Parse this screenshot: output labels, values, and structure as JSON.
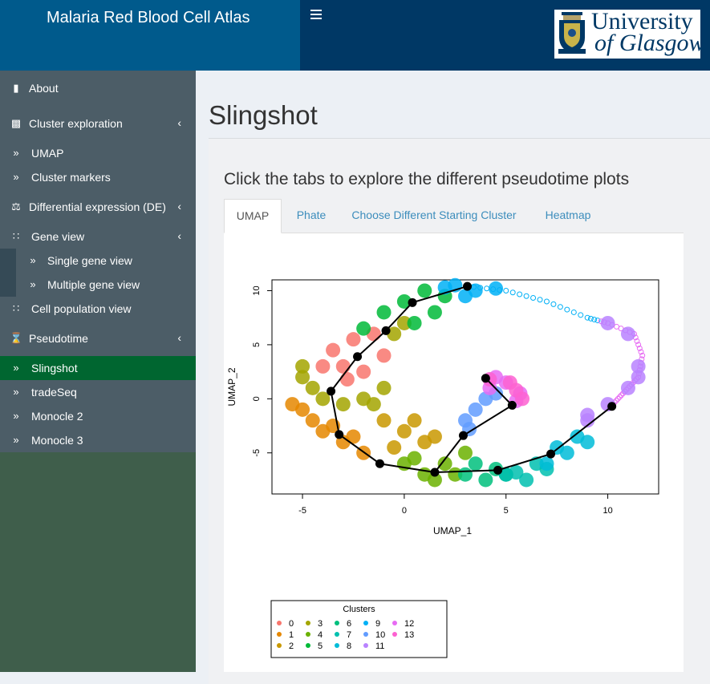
{
  "header": {
    "app_title": "Malaria Red Blood Cell Atlas",
    "logo_line1": "University",
    "logo_line2": "of Glasgow",
    "toggle_icon": "hamburger-icon"
  },
  "sidebar": {
    "items": [
      {
        "label": "About",
        "icon": "book-icon"
      },
      {
        "label": "Cluster exploration",
        "icon": "puzzle-icon",
        "expandable": true
      },
      {
        "label": "UMAP",
        "icon": "double-chevron-icon"
      },
      {
        "label": "Cluster markers",
        "icon": "double-chevron-icon"
      },
      {
        "label": "Differential expression (DE)",
        "icon": "balance-scale-icon",
        "expandable": true
      },
      {
        "label": "Gene view",
        "icon": "grid-icon",
        "expandable": true
      },
      {
        "label": "Single gene view",
        "icon": "double-chevron-icon"
      },
      {
        "label": "Multiple gene view",
        "icon": "double-chevron-icon"
      },
      {
        "label": "Cell population view",
        "icon": "grid-icon"
      },
      {
        "label": "Pseudotime",
        "icon": "hourglass-icon",
        "expandable": true
      },
      {
        "label": "Slingshot",
        "icon": "double-chevron-icon",
        "active": true
      },
      {
        "label": "tradeSeq",
        "icon": "double-chevron-icon"
      },
      {
        "label": "Monocle 2",
        "icon": "double-chevron-icon"
      },
      {
        "label": "Monocle 3",
        "icon": "double-chevron-icon"
      }
    ],
    "active_color": "#006630"
  },
  "main": {
    "page_title": "Slingshot",
    "box_title": "Click the tabs to explore the different pseudotime plots",
    "tabs": [
      {
        "label": "UMAP",
        "active": true
      },
      {
        "label": "Phate"
      },
      {
        "label": "Choose Different Starting Cluster"
      },
      {
        "label": "Heatmap"
      }
    ]
  },
  "chart_data": {
    "type": "scatter",
    "title": "",
    "xlabel": "UMAP_1",
    "ylabel": "UMAP_2",
    "xlim": [
      -6.5,
      12.5
    ],
    "ylim": [
      -8.8,
      11
    ],
    "x_ticks": [
      -5,
      0,
      5,
      10
    ],
    "y_ticks": [
      -5,
      0,
      5,
      10
    ],
    "legend": {
      "title": "Clusters",
      "placement": "bottom-left",
      "entries": [
        "0",
        "1",
        "2",
        "3",
        "4",
        "5",
        "6",
        "7",
        "8",
        "9",
        "10",
        "11",
        "12",
        "13"
      ]
    },
    "cluster_colors": [
      "#F8766D",
      "#E58700",
      "#C99800",
      "#A3A500",
      "#6BB100",
      "#00BA38",
      "#00BF7D",
      "#00C0AF",
      "#00BCD8",
      "#00B0F6",
      "#619CFF",
      "#B983FF",
      "#E76BF3",
      "#FD61D1"
    ],
    "clusters": [
      {
        "cluster": "0",
        "points": [
          [
            -3.5,
            4.5
          ],
          [
            -2.5,
            5.5
          ],
          [
            -1.5,
            6
          ],
          [
            -3,
            3
          ],
          [
            -2,
            2.5
          ],
          [
            -1,
            4
          ],
          [
            -2.8,
            1.8
          ],
          [
            -4,
            3
          ]
        ]
      },
      {
        "cluster": "1",
        "points": [
          [
            -5,
            -1
          ],
          [
            -4,
            -3
          ],
          [
            -3,
            -4
          ],
          [
            -2,
            -5
          ],
          [
            -4.5,
            -2
          ],
          [
            -3.5,
            -2.5
          ],
          [
            -5.5,
            -0.5
          ],
          [
            -2.5,
            -3.5
          ]
        ]
      },
      {
        "cluster": "2",
        "points": [
          [
            -1,
            -2
          ],
          [
            0,
            -3
          ],
          [
            1,
            -4
          ],
          [
            -0.5,
            -4.5
          ],
          [
            0.5,
            -2
          ],
          [
            1.5,
            -3.5
          ]
        ]
      },
      {
        "cluster": "3",
        "points": [
          [
            -5,
            2
          ],
          [
            -4.5,
            1
          ],
          [
            -4,
            0
          ],
          [
            -2,
            0
          ],
          [
            -1,
            1
          ],
          [
            -1.5,
            -0.5
          ],
          [
            -0.5,
            6
          ],
          [
            0,
            7
          ],
          [
            -5,
            3
          ],
          [
            -3,
            -0.5
          ]
        ]
      },
      {
        "cluster": "4",
        "points": [
          [
            0,
            -6
          ],
          [
            1,
            -7
          ],
          [
            2,
            -6
          ],
          [
            3,
            -5
          ],
          [
            1.5,
            -7.5
          ],
          [
            2.5,
            -7
          ],
          [
            0.5,
            -5.5
          ]
        ]
      },
      {
        "cluster": "5",
        "points": [
          [
            -1,
            8
          ],
          [
            0,
            9
          ],
          [
            1,
            10
          ],
          [
            2,
            9.5
          ],
          [
            0.5,
            7
          ],
          [
            -2,
            6.5
          ],
          [
            1.5,
            8
          ]
        ]
      },
      {
        "cluster": "6",
        "points": [
          [
            3,
            -7
          ],
          [
            4,
            -7.5
          ],
          [
            5,
            -7
          ],
          [
            3.5,
            -6
          ],
          [
            4.5,
            -6.5
          ]
        ]
      },
      {
        "cluster": "7",
        "points": [
          [
            5,
            -7
          ],
          [
            6,
            -7.5
          ],
          [
            7,
            -6.5
          ],
          [
            6.5,
            -6
          ],
          [
            5.5,
            -6.8
          ]
        ]
      },
      {
        "cluster": "8",
        "points": [
          [
            7,
            -6
          ],
          [
            8,
            -5
          ],
          [
            9,
            -4
          ],
          [
            7.5,
            -4.5
          ],
          [
            8.5,
            -3.5
          ]
        ]
      },
      {
        "cluster": "9",
        "points": [
          [
            2.5,
            10.5
          ],
          [
            3.5,
            10
          ],
          [
            4.5,
            10.2
          ],
          [
            3,
            9.5
          ],
          [
            2,
            10.3
          ]
        ]
      },
      {
        "cluster": "10",
        "points": [
          [
            3,
            -2
          ],
          [
            3.5,
            -1
          ],
          [
            4,
            0
          ],
          [
            4.5,
            0.5
          ],
          [
            3.2,
            -2.8
          ]
        ]
      },
      {
        "cluster": "11",
        "points": [
          [
            9,
            -1.5
          ],
          [
            10,
            -0.5
          ],
          [
            11,
            1
          ],
          [
            11.5,
            3
          ],
          [
            11,
            6
          ],
          [
            10,
            7
          ],
          [
            9,
            -2
          ],
          [
            11.5,
            2
          ]
        ]
      },
      {
        "cluster": "12",
        "points": [
          [
            4.5,
            2
          ],
          [
            5,
            1.5
          ],
          [
            4.2,
            1
          ],
          [
            5.5,
            -0.2
          ],
          [
            5.7,
            0.5
          ]
        ]
      },
      {
        "cluster": "13",
        "points": [
          [
            4.2,
            1.8
          ],
          [
            5.2,
            1.5
          ],
          [
            5.8,
            0
          ],
          [
            5.5,
            0.8
          ]
        ]
      }
    ],
    "trajectory": [
      [
        3.1,
        10.4
      ],
      [
        0.4,
        8.9
      ],
      [
        -0.9,
        6.3
      ],
      [
        -2.3,
        3.9
      ],
      [
        -3.6,
        0.7
      ],
      [
        -3.2,
        -3.3
      ],
      [
        -1.2,
        -6
      ],
      [
        1.5,
        -6.8
      ],
      [
        4.6,
        -6.6
      ],
      [
        7.2,
        -5.1
      ],
      [
        10.2,
        -0.7
      ]
    ],
    "branch": [
      [
        1.5,
        -6.8
      ],
      [
        2.9,
        -3.4
      ],
      [
        5.3,
        -0.6
      ],
      [
        4,
        1.9
      ]
    ],
    "outer_arc": [
      [
        3.1,
        10.4
      ],
      [
        5,
        10
      ],
      [
        7,
        9
      ],
      [
        9,
        7.5
      ],
      [
        10,
        7
      ],
      [
        11.3,
        6
      ],
      [
        11.7,
        4
      ],
      [
        11.5,
        2
      ],
      [
        11,
        1
      ],
      [
        10.5,
        0
      ],
      [
        10,
        -1
      ]
    ]
  }
}
